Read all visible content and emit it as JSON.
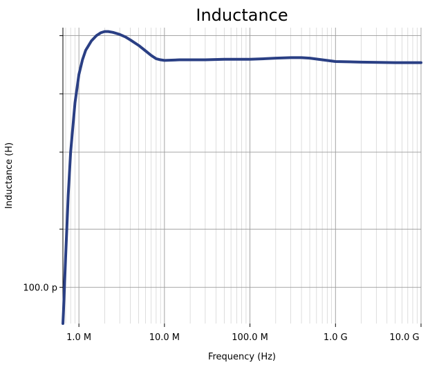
{
  "chart_data": {
    "type": "line",
    "title": "Inductance",
    "xlabel": "Frequency (Hz)",
    "ylabel": "Inductance (H)",
    "x_scale": "log",
    "y_scale": "log",
    "xlim": [
      650000,
      10000000000
    ],
    "ylim": [
      6.5e-11,
      2.2e-09
    ],
    "x_ticks": [
      {
        "value": 1000000,
        "label": "1.0 M"
      },
      {
        "value": 10000000,
        "label": "10.0 M"
      },
      {
        "value": 100000000,
        "label": "100.0 M"
      },
      {
        "value": 1000000000,
        "label": "1.0 G"
      },
      {
        "value": 10000000000,
        "label": "10.0 G"
      }
    ],
    "y_ticks": [
      {
        "value": 1e-10,
        "label": "100.0 p"
      }
    ],
    "grid": true,
    "series": [
      {
        "color": "#2a3f84",
        "x": [
          650000,
          660000,
          680000,
          700000,
          750000,
          800000,
          900000,
          1000000,
          1100000,
          1200000,
          1400000,
          1600000,
          1800000,
          2000000,
          2200000,
          2500000,
          3000000,
          3500000,
          4000000,
          5000000,
          6000000,
          7000000,
          8000000,
          9000000,
          10000000,
          15000000,
          20000000,
          30000000,
          50000000,
          70000000,
          100000000,
          150000000,
          200000000,
          300000000,
          400000000,
          500000000,
          700000000,
          1000000000,
          2000000000,
          5000000000,
          10000000000
        ],
        "y": [
          6.5e-11,
          7.5e-11,
          1.05e-10,
          1.45e-10,
          3e-10,
          5e-10,
          9e-10,
          1.26e-09,
          1.5e-09,
          1.68e-09,
          1.88e-09,
          2e-09,
          2.07e-09,
          2.1e-09,
          2.1e-09,
          2.08e-09,
          2.03e-09,
          1.97e-09,
          1.9e-09,
          1.78e-09,
          1.67e-09,
          1.58e-09,
          1.52e-09,
          1.5e-09,
          1.49e-09,
          1.5e-09,
          1.5e-09,
          1.5e-09,
          1.51e-09,
          1.51e-09,
          1.51e-09,
          1.52e-09,
          1.53e-09,
          1.54e-09,
          1.54e-09,
          1.53e-09,
          1.5e-09,
          1.47e-09,
          1.46e-09,
          1.45e-09,
          1.45e-09
        ]
      }
    ]
  }
}
